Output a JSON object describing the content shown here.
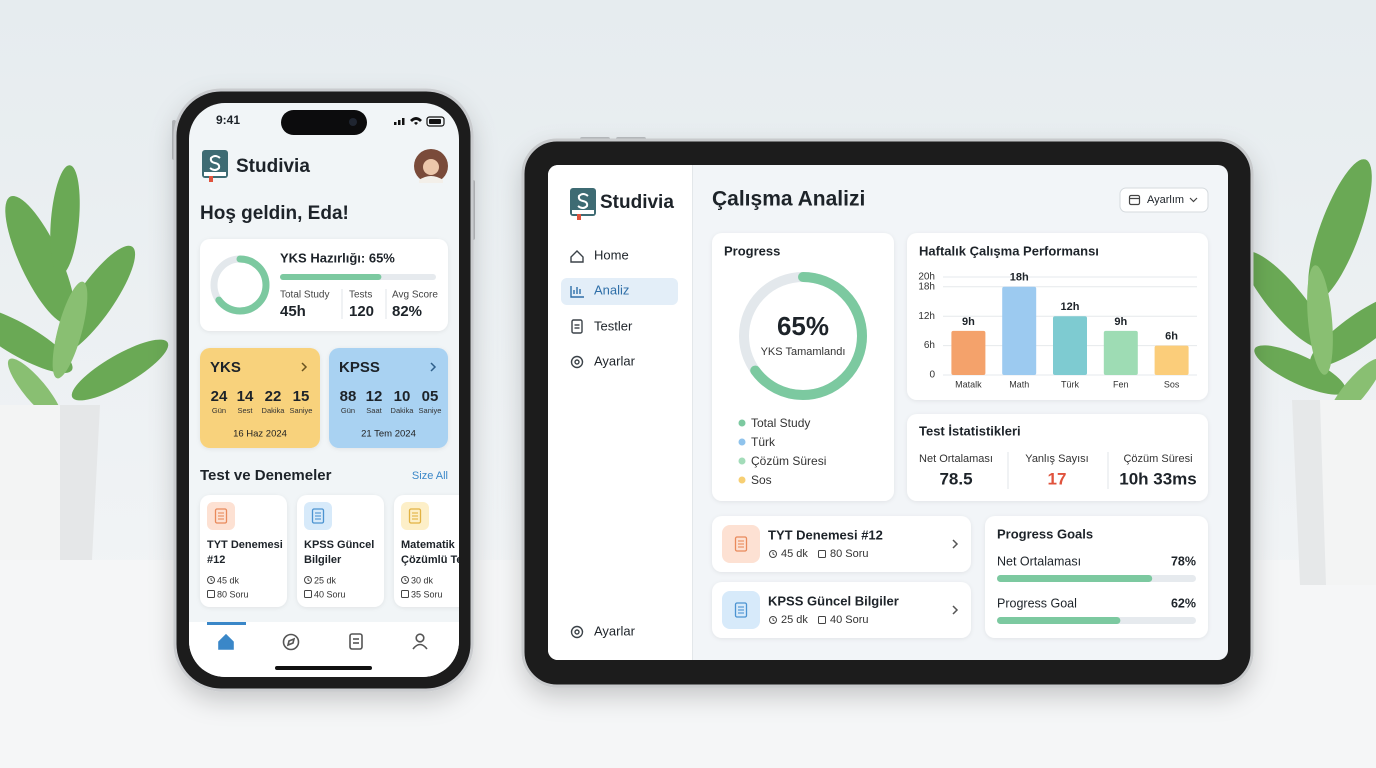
{
  "phone": {
    "status_time": "9:41",
    "app_name": "Studivia",
    "greeting": "Hoş geldin, Eda!",
    "readiness": {
      "label": "YKS Hazırlığı: 65%",
      "progress": 65,
      "stats": [
        {
          "label": "Total Study",
          "value": "45h"
        },
        {
          "label": "Tests",
          "value": "120"
        },
        {
          "label": "Avg Score",
          "value": "82%"
        }
      ]
    },
    "countdowns": [
      {
        "title": "YKS",
        "units": [
          {
            "value": "24",
            "unit": "Gün"
          },
          {
            "value": "14",
            "unit": "Sest"
          },
          {
            "value": "22",
            "unit": "Dakika"
          },
          {
            "value": "15",
            "unit": "Saniye"
          }
        ],
        "date": "16 Haz 2024"
      },
      {
        "title": "KPSS",
        "units": [
          {
            "value": "88",
            "unit": "Gün"
          },
          {
            "value": "12",
            "unit": "Saat"
          },
          {
            "value": "10",
            "unit": "Dakika"
          },
          {
            "value": "05",
            "unit": "Saniye"
          }
        ],
        "date": "21 Tem 2024"
      }
    ],
    "tests_title": "Test ve Denemeler",
    "see_all": "Size All",
    "tests": [
      {
        "title": "TYT Denemesi #12",
        "time": "45 dk",
        "questions": "80 Soru"
      },
      {
        "title": "KPSS Güncel Bilgiler",
        "time": "25 dk",
        "questions": "40 Soru"
      },
      {
        "title": "Matematik Çözümlü Test",
        "time": "30 dk",
        "questions": "35 Soru"
      }
    ]
  },
  "tablet": {
    "app_name": "Studivia",
    "nav": [
      "Home",
      "Analiz",
      "Testler",
      "Ayarlar"
    ],
    "nav_bottom": "Ayarlar",
    "page_title": "Çalışma Analizi",
    "dropdown": "Ayarlım",
    "progress": {
      "title": "Progress",
      "value": 65,
      "value_label": "65%",
      "caption": "YKS Tamamlandı",
      "legend": [
        {
          "name": "Total Study",
          "color": "#7cc9a0"
        },
        {
          "name": "Türk",
          "color": "#8fc3ec"
        },
        {
          "name": "Çözüm Süresi",
          "color": "#a3dcb9"
        },
        {
          "name": "Sos",
          "color": "#f7cf73"
        }
      ]
    },
    "test_stats": {
      "title": "Test İstatistikleri",
      "items": [
        {
          "label": "Net Ortalaması",
          "value": "78.5",
          "color": "#1d2329"
        },
        {
          "label": "Yanlış Sayısı",
          "value": "17",
          "color": "#e0533d"
        },
        {
          "label": "Çözüm Süresi",
          "value": "10h 33ms",
          "color": "#1d2329"
        }
      ]
    },
    "tests": [
      {
        "title": "TYT Denemesi #12",
        "time": "45 dk",
        "questions": "80 Soru"
      },
      {
        "title": "KPSS Güncel Bilgiler",
        "time": "25 dk",
        "questions": "40 Soru"
      }
    ],
    "goals": {
      "title": "Progress Goals",
      "items": [
        {
          "label": "Net Ortalaması",
          "value": 78,
          "value_label": "78%"
        },
        {
          "label": "Progress Goal",
          "value": 62,
          "value_label": "62%"
        }
      ]
    }
  },
  "chart_data": {
    "type": "bar",
    "title": "Haftalık Çalışma Performansı",
    "categories": [
      "Matalk",
      "Math",
      "Türk",
      "Fen",
      "Sos"
    ],
    "values": [
      9,
      18,
      12,
      9,
      6
    ],
    "value_labels": [
      "9h",
      "18h",
      "12h",
      "9h",
      "6h"
    ],
    "colors": [
      "#f4a26b",
      "#9ccaf0",
      "#7ecbd1",
      "#9edcb4",
      "#fbcd7a"
    ],
    "ylim": [
      0,
      20
    ],
    "yticks": [
      0,
      {
        "value": 6,
        "label": "6h"
      },
      {
        "value": 12,
        "label": "12h"
      },
      {
        "value": 18,
        "label": "18h"
      },
      {
        "value": 20,
        "label": "20h"
      }
    ],
    "grid": true
  }
}
